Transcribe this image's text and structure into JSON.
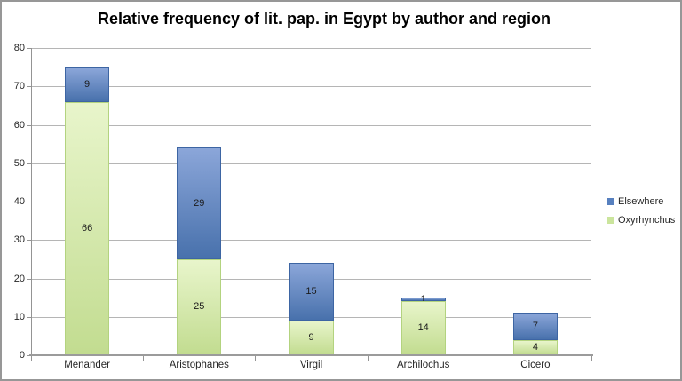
{
  "chart_data": {
    "type": "bar",
    "stacked": true,
    "title": "Relative frequency of lit. pap. in Egypt by author and region",
    "categories": [
      "Menander",
      "Aristophanes",
      "Virgil",
      "Archilochus",
      "Cicero"
    ],
    "series": [
      {
        "name": "Oxyrhynchus",
        "values": [
          66,
          25,
          9,
          14,
          4
        ],
        "color": "#CBE59D",
        "gradient_top": "#E8F5CB",
        "gradient_bottom": "#C2DC90",
        "border_color": "#B3D37F"
      },
      {
        "name": "Elsewhere",
        "values": [
          9,
          29,
          15,
          1,
          7
        ],
        "color": "#5780BF",
        "gradient_top": "#8BA6D9",
        "gradient_bottom": "#4871AC",
        "border_color": "#3D65A3"
      }
    ],
    "ylim": [
      0,
      80
    ],
    "ytick_step": 10,
    "ytick_labels": [
      "0",
      "10",
      "20",
      "30",
      "40",
      "50",
      "60",
      "70",
      "80"
    ],
    "grid": true,
    "legend_position": "right",
    "legend_order": [
      "Elsewhere",
      "Oxyrhynchus"
    ]
  },
  "colors": {
    "gridline": "#B5B5B5",
    "axis": "#949494",
    "label_text": "#262626",
    "value_text": "#1B1B1B",
    "chart_border": "#979797",
    "background": "#FFFFFF"
  }
}
